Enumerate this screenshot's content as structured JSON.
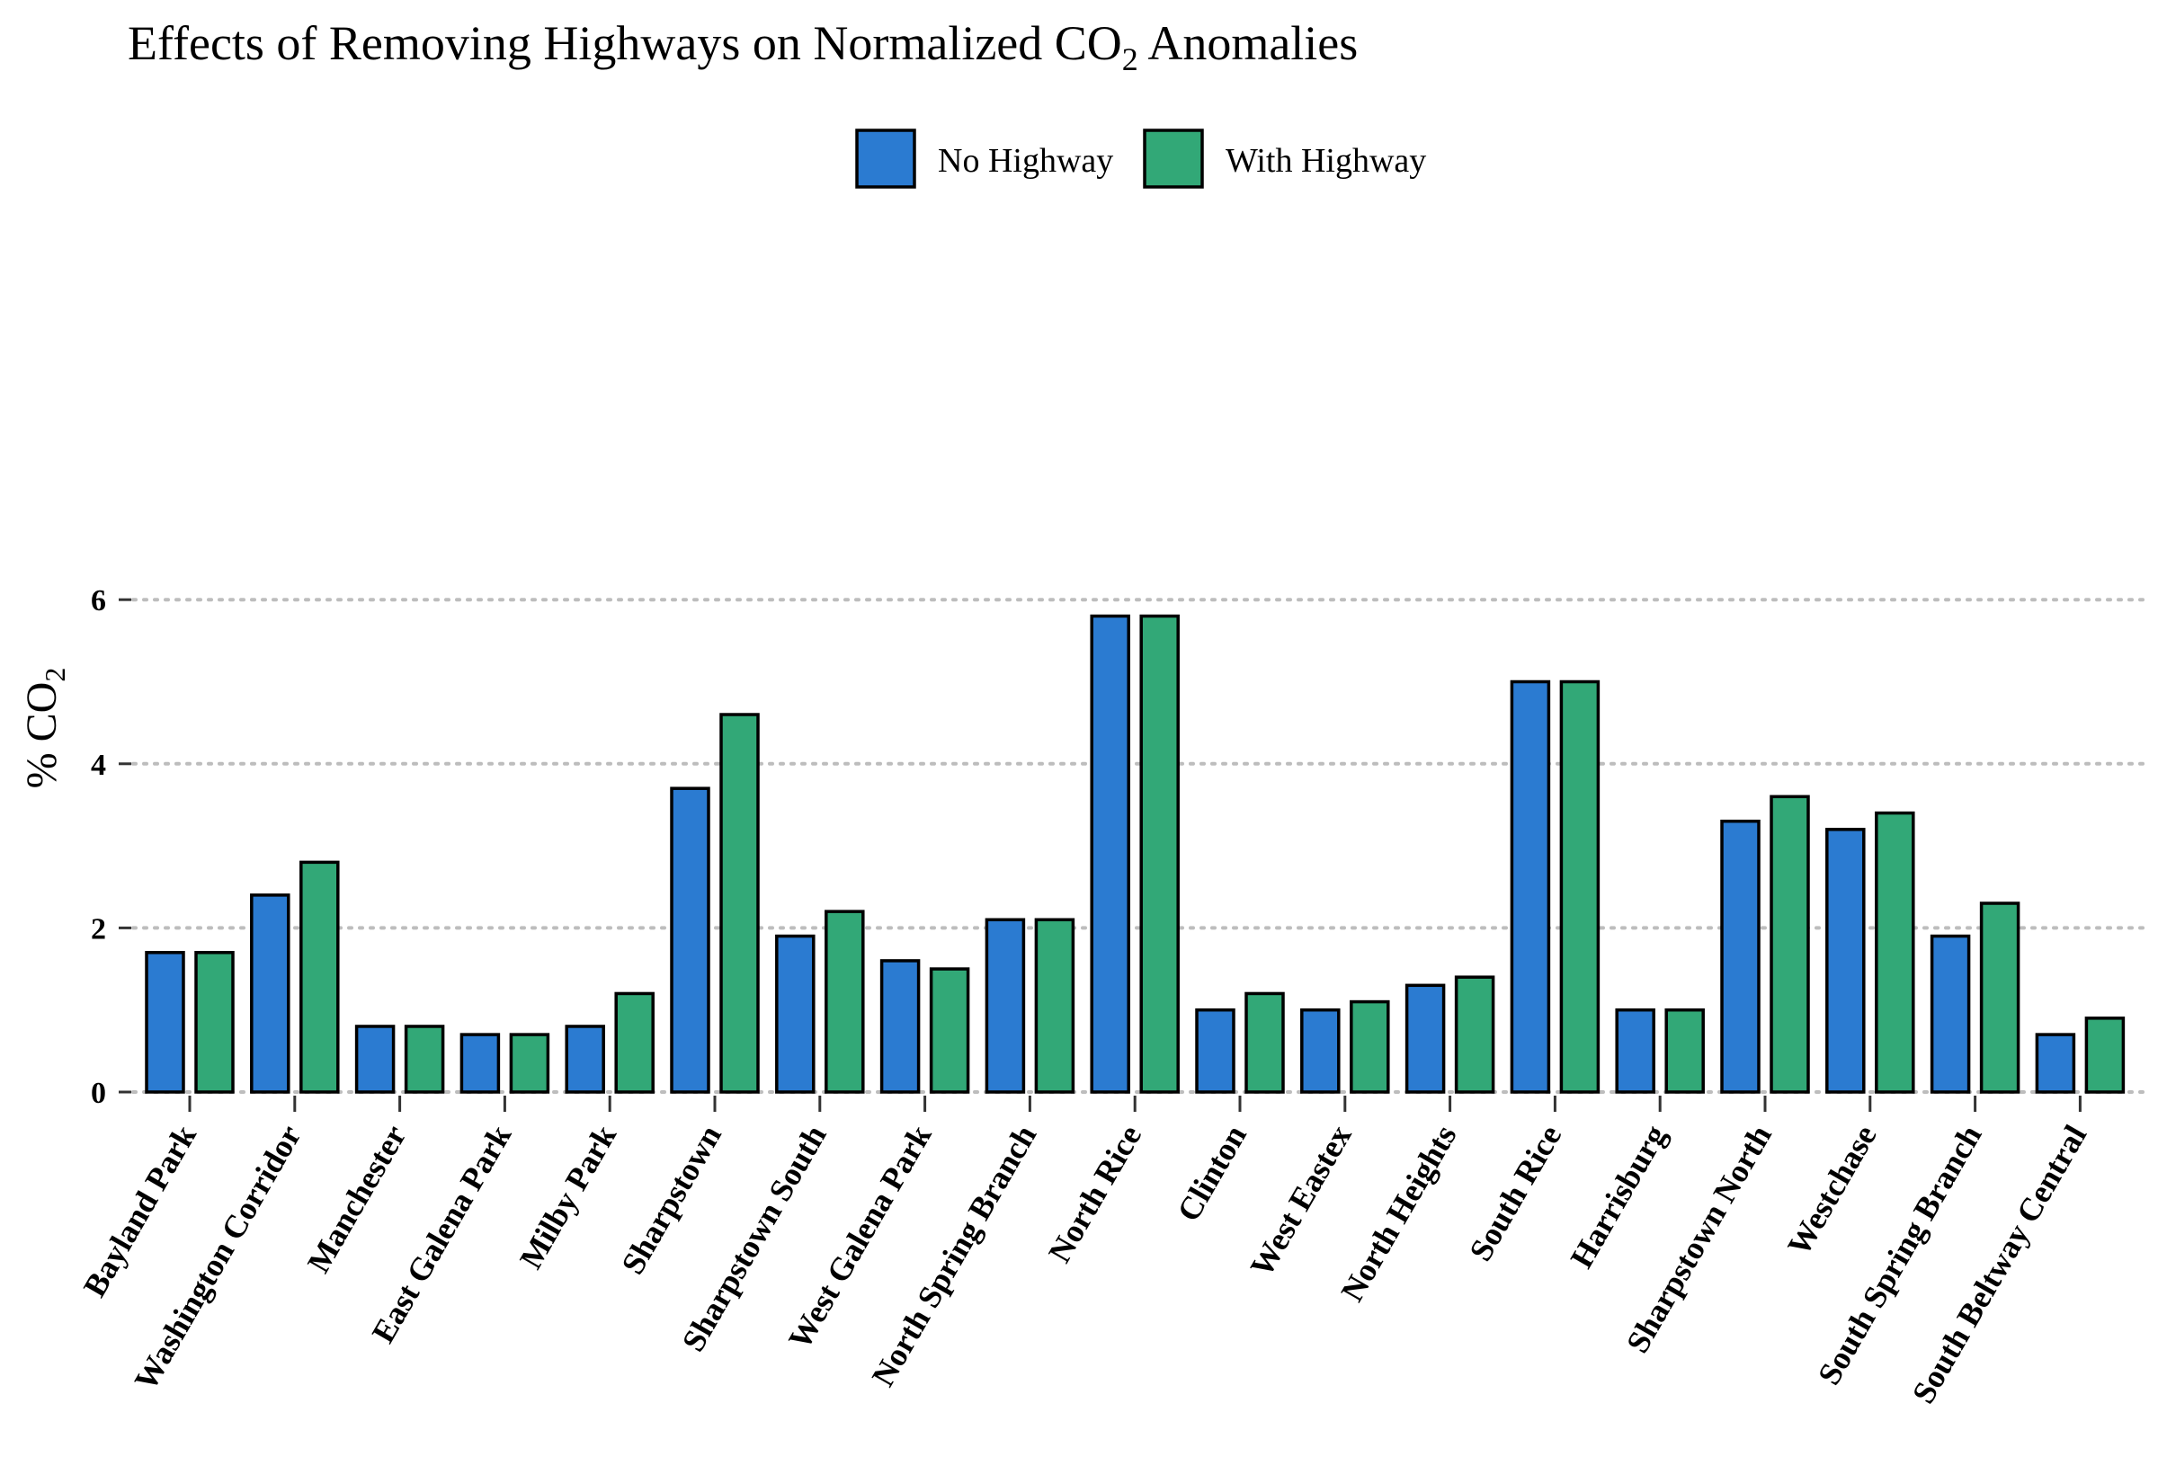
{
  "chart_data": {
    "type": "bar",
    "title": "Effects of Removing Highways on Normalized CO",
    "title_subscript": "2",
    "title_suffix": " Anomalies",
    "ylabel": "% CO",
    "ylabel_subscript": "2",
    "xlabel": "",
    "ylim": [
      -0.3,
      6.25
    ],
    "yticks": [
      "0",
      "2",
      "4",
      "6"
    ],
    "grid": "horizontal dotted",
    "legend_position": "top",
    "categories": [
      "Bayland Park",
      "Washington Corridor",
      "Manchester",
      "East Galena Park",
      "Milby Park",
      "Sharpstown",
      "Sharpstown South",
      "West Galena Park",
      "North Spring Branch",
      "North Rice",
      "Clinton",
      "West Eastex",
      "North Heights",
      "South Rice",
      "Harrisburg",
      "Sharpstown North",
      "Westchase",
      "South Spring Branch",
      "South Beltway Central"
    ],
    "series": [
      {
        "name": "No Highway",
        "color": "#2b7bd1",
        "values": [
          1.7,
          2.4,
          0.8,
          0.7,
          0.8,
          3.7,
          1.9,
          1.6,
          2.1,
          5.8,
          1.0,
          1.0,
          1.3,
          5.0,
          1.0,
          3.3,
          3.2,
          1.9,
          0.7
        ]
      },
      {
        "name": "With Highway",
        "color": "#32a877",
        "values": [
          1.7,
          2.8,
          0.8,
          0.7,
          1.2,
          4.6,
          2.2,
          1.5,
          2.1,
          5.8,
          1.2,
          1.1,
          1.4,
          5.0,
          1.0,
          3.6,
          3.4,
          2.3,
          0.9
        ]
      }
    ]
  }
}
